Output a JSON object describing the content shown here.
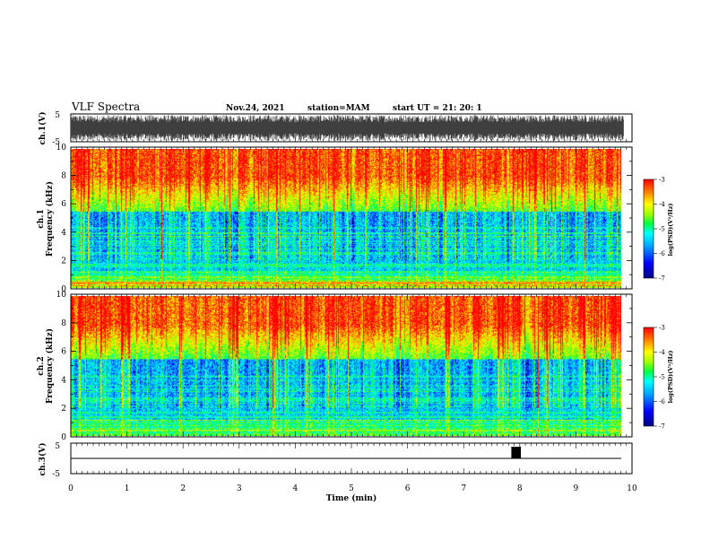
{
  "header": {
    "title": "VLF Spectra",
    "date": "Nov.24, 2021",
    "station": "station=MAM",
    "start": "start  UT =   21: 20: 1"
  },
  "colors": {
    "spectrum_scale": [
      "#00008b",
      "#0000ff",
      "#00a0ff",
      "#00ffff",
      "#00ff60",
      "#80ff00",
      "#ffff00",
      "#ff8000",
      "#ff0000"
    ],
    "waveform": "#000000"
  },
  "chart_data": [
    {
      "type": "line",
      "name": "ch1-waveform",
      "ylabel": "ch.1(V)",
      "ylim": [
        -5,
        5
      ],
      "y_ticks": [
        "5",
        "-5"
      ],
      "x_units": "min",
      "xlim": [
        0,
        10
      ],
      "description_values": {
        "typical_min": -4.5,
        "typical_max": 4.5,
        "end_time": 9.85
      }
    },
    {
      "type": "heatmap",
      "name": "ch1-spectrogram",
      "ylabel": "ch.1\nFrequency (kHz)",
      "ylim": [
        0,
        10
      ],
      "y_ticks": [
        "0",
        "2",
        "4",
        "6",
        "8",
        "10"
      ],
      "xlim": [
        0,
        10
      ],
      "colorbar": {
        "label": "log(PSD)(V²/Hz)",
        "range": [
          -7,
          -3
        ],
        "ticks": [
          "-3",
          "-4",
          "-5",
          "-6",
          "-7"
        ]
      }
    },
    {
      "type": "heatmap",
      "name": "ch2-spectrogram",
      "ylabel": "ch.2\nFrequency (kHz)",
      "ylim": [
        0,
        10
      ],
      "y_ticks": [
        "0",
        "2",
        "4",
        "6",
        "8",
        "10"
      ],
      "xlim": [
        0,
        10
      ],
      "colorbar": {
        "label": "log(PSD)(V²/Hz)",
        "range": [
          -7,
          -3
        ],
        "ticks": [
          "-3",
          "-4",
          "-5",
          "-6",
          "-7"
        ]
      }
    },
    {
      "type": "line",
      "name": "ch3-waveform",
      "ylabel": "ch.3(V)",
      "ylim": [
        -5,
        5
      ],
      "y_ticks": [
        "5",
        "-5"
      ],
      "xlim": [
        0,
        10
      ],
      "x_ticks": [
        "0",
        "1",
        "2",
        "3",
        "4",
        "5",
        "6",
        "7",
        "8",
        "9",
        "10"
      ],
      "xlabel": "Time  (min)",
      "pulse": {
        "x_start": 7.85,
        "x_end": 8.02,
        "y_low": 0,
        "y_high": 5
      },
      "baseline": 0
    }
  ]
}
